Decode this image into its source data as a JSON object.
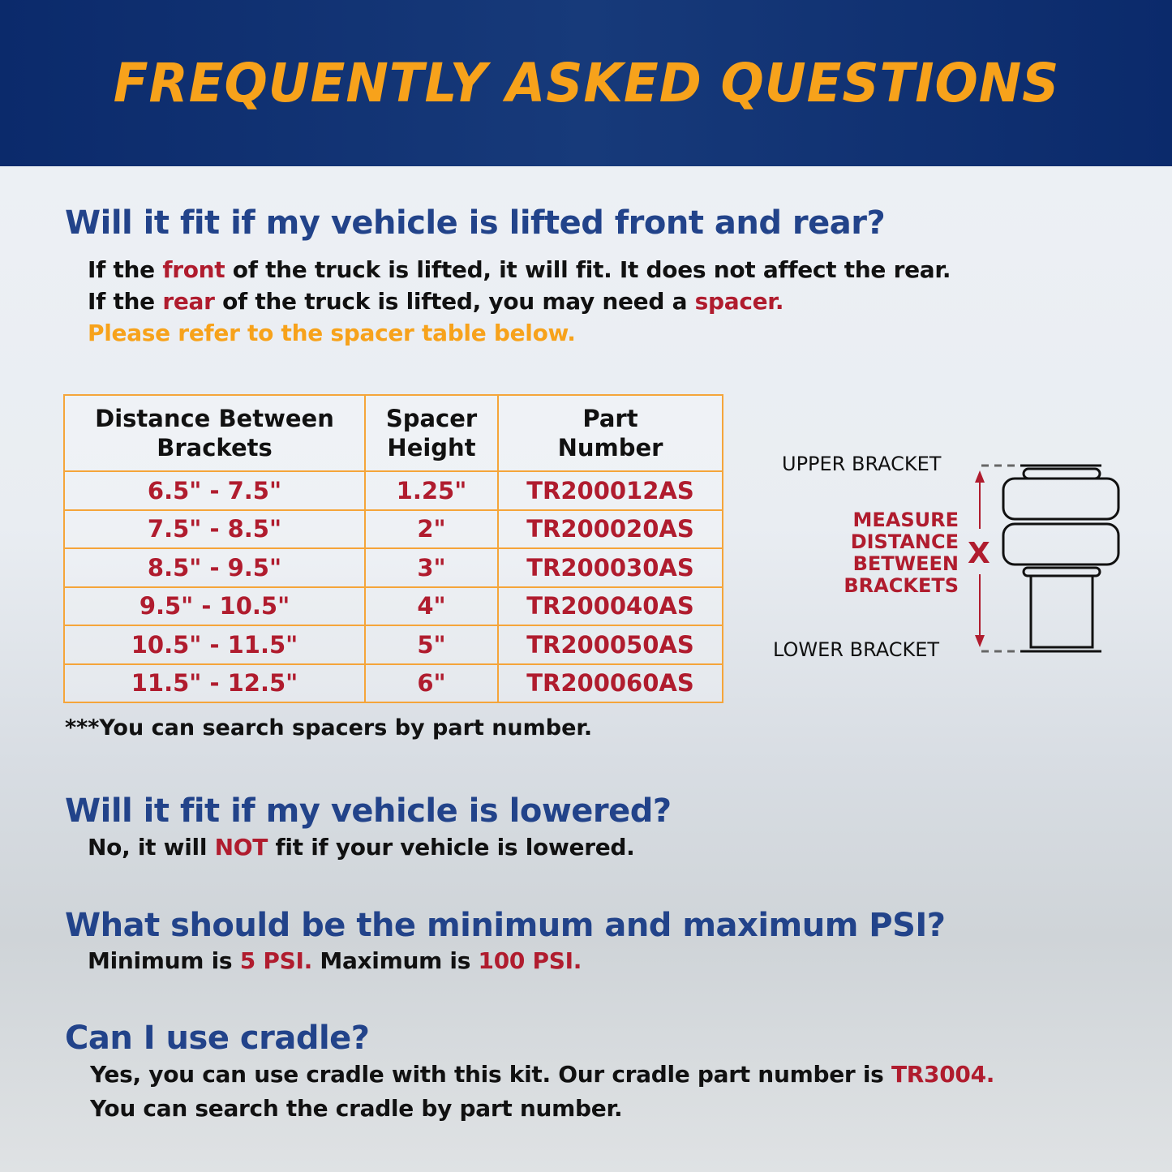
{
  "title": "FREQUENTLY ASKED QUESTIONS",
  "faq1": {
    "question": "Will it fit if my vehicle is lifted front and rear?",
    "l1": [
      "If the ",
      "front",
      " of the truck is lifted, it will fit. It does not affect the rear."
    ],
    "l2": [
      "If the ",
      "rear",
      " of the truck is lifted, you may need a ",
      "spacer."
    ],
    "l3": "Please refer to the spacer table below."
  },
  "table": {
    "headers": [
      "Distance Between Brackets",
      "Spacer Height",
      "Part Number"
    ],
    "rows": [
      [
        "6.5\" - 7.5\"",
        "1.25\"",
        "TR200012AS"
      ],
      [
        "7.5\" - 8.5\"",
        "2\"",
        "TR200020AS"
      ],
      [
        "8.5\" - 9.5\"",
        "3\"",
        "TR200030AS"
      ],
      [
        "9.5\" - 10.5\"",
        "4\"",
        "TR200040AS"
      ],
      [
        "10.5\" - 11.5\"",
        "5\"",
        "TR200050AS"
      ],
      [
        "11.5\" - 12.5\"",
        "6\"",
        "TR200060AS"
      ]
    ]
  },
  "note": "***You can search spacers by part number.",
  "diagram": {
    "upper": "UPPER BRACKET",
    "lower": "LOWER BRACKET",
    "measure": "MEASURE DISTANCE BETWEEN BRACKETS",
    "x": "X"
  },
  "faq2": {
    "question": "Will it fit if my vehicle is lowered?",
    "a": [
      "No, it will ",
      "NOT",
      " fit if your vehicle is lowered."
    ]
  },
  "faq3": {
    "question": "What should be the minimum and maximum PSI?",
    "a": [
      "Minimum is ",
      "5 PSI.",
      " Maximum is ",
      "100 PSI."
    ]
  },
  "faq4": {
    "question": "Can I use cradle?",
    "l1": [
      "Yes, you can use cradle with this kit. Our cradle part number is ",
      "TR3004."
    ],
    "l2": "You can search the cradle by part number."
  },
  "colors": {
    "navy": "#0b2a6b",
    "orange": "#f7a21b",
    "blue": "#22438a",
    "red": "#b01c2e"
  }
}
